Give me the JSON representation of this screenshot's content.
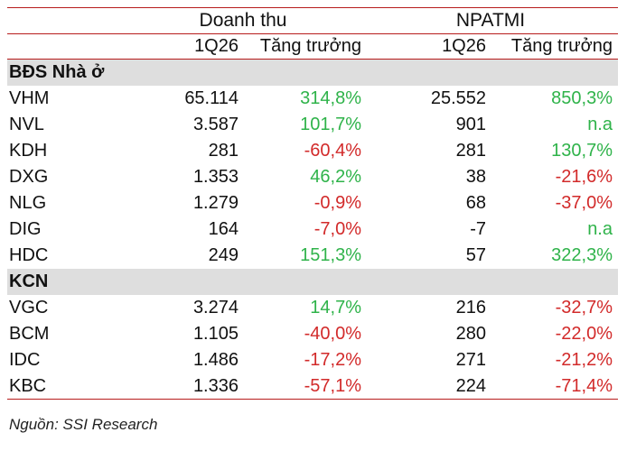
{
  "header": {
    "group_revenue": "Doanh thu",
    "group_npatmi": "NPATMI",
    "col_period_1": "1Q26",
    "col_growth_1": "Tăng trưởng",
    "col_period_2": "1Q26",
    "col_growth_2": "Tăng trưởng"
  },
  "colors": {
    "positive": "#2fb34a",
    "negative": "#d22a2a",
    "neutral": "#111111",
    "section_bg": "#dedede",
    "rule": "#b71c1c"
  },
  "sections": [
    {
      "title": "BĐS Nhà ở",
      "rows": [
        {
          "ticker": "VHM",
          "revenue": "65.114",
          "revenue_growth": "314,8%",
          "rev_sign": "pos",
          "npatmi": "25.552",
          "npatmi_growth": "850,3%",
          "np_sign": "pos"
        },
        {
          "ticker": "NVL",
          "revenue": "3.587",
          "revenue_growth": "101,7%",
          "rev_sign": "pos",
          "npatmi": "901",
          "npatmi_growth": "n.a",
          "np_sign": "pos"
        },
        {
          "ticker": "KDH",
          "revenue": "281",
          "revenue_growth": "-60,4%",
          "rev_sign": "neg",
          "npatmi": "281",
          "npatmi_growth": "130,7%",
          "np_sign": "pos"
        },
        {
          "ticker": "DXG",
          "revenue": "1.353",
          "revenue_growth": "46,2%",
          "rev_sign": "pos",
          "npatmi": "38",
          "npatmi_growth": "-21,6%",
          "np_sign": "neg"
        },
        {
          "ticker": "NLG",
          "revenue": "1.279",
          "revenue_growth": "-0,9%",
          "rev_sign": "neg",
          "npatmi": "68",
          "npatmi_growth": "-37,0%",
          "np_sign": "neg"
        },
        {
          "ticker": "DIG",
          "revenue": "164",
          "revenue_growth": "-7,0%",
          "rev_sign": "neg",
          "npatmi": "-7",
          "npatmi_growth": "n.a",
          "np_sign": "pos"
        },
        {
          "ticker": "HDC",
          "revenue": "249",
          "revenue_growth": "151,3%",
          "rev_sign": "pos",
          "npatmi": "57",
          "npatmi_growth": "322,3%",
          "np_sign": "pos"
        }
      ]
    },
    {
      "title": "KCN",
      "rows": [
        {
          "ticker": "VGC",
          "revenue": "3.274",
          "revenue_growth": "14,7%",
          "rev_sign": "pos",
          "npatmi": "216",
          "npatmi_growth": "-32,7%",
          "np_sign": "neg"
        },
        {
          "ticker": "BCM",
          "revenue": "1.105",
          "revenue_growth": "-40,0%",
          "rev_sign": "neg",
          "npatmi": "280",
          "npatmi_growth": "-22,0%",
          "np_sign": "neg"
        },
        {
          "ticker": "IDC",
          "revenue": "1.486",
          "revenue_growth": "-17,2%",
          "rev_sign": "neg",
          "npatmi": "271",
          "npatmi_growth": "-21,2%",
          "np_sign": "neg"
        },
        {
          "ticker": "KBC",
          "revenue": "1.336",
          "revenue_growth": "-57,1%",
          "rev_sign": "neg",
          "npatmi": "224",
          "npatmi_growth": "-71,4%",
          "np_sign": "neg"
        }
      ]
    }
  ],
  "source": "Nguồn: SSI Research"
}
